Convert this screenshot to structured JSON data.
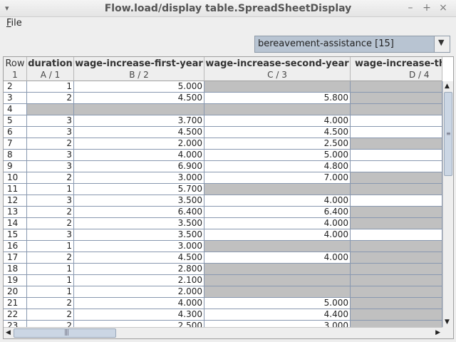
{
  "window": {
    "title": "Flow.load/display table.SpreadSheetDisplay",
    "minimize": "–",
    "maximize": "+",
    "close": "×",
    "menu_icon": "▾"
  },
  "menu": {
    "file_mnemonic": "F",
    "file_rest": "ile"
  },
  "selector": {
    "value": "bereavement-assistance [15]",
    "arrow": "▼"
  },
  "table": {
    "row_header": {
      "name": "Row",
      "index": "1"
    },
    "columns": [
      {
        "name": "duration",
        "sub": "A / 1"
      },
      {
        "name": "wage-increase-first-year",
        "sub": "B / 2"
      },
      {
        "name": "wage-increase-second-year",
        "sub": "C / 3"
      },
      {
        "name": "wage-increase-th",
        "sub": "D / 4"
      }
    ],
    "rows": [
      {
        "row": "2",
        "cells": [
          "1",
          "5.000",
          null,
          null
        ]
      },
      {
        "row": "3",
        "cells": [
          "2",
          "4.500",
          "5.800",
          null
        ]
      },
      {
        "row": "4",
        "cells": [
          null,
          null,
          null,
          null
        ]
      },
      {
        "row": "5",
        "cells": [
          "3",
          "3.700",
          "4.000",
          ""
        ]
      },
      {
        "row": "6",
        "cells": [
          "3",
          "4.500",
          "4.500",
          ""
        ]
      },
      {
        "row": "7",
        "cells": [
          "2",
          "2.000",
          "2.500",
          null
        ]
      },
      {
        "row": "8",
        "cells": [
          "3",
          "4.000",
          "5.000",
          ""
        ]
      },
      {
        "row": "9",
        "cells": [
          "3",
          "6.900",
          "4.800",
          ""
        ]
      },
      {
        "row": "10",
        "cells": [
          "2",
          "3.000",
          "7.000",
          null
        ]
      },
      {
        "row": "11",
        "cells": [
          "1",
          "5.700",
          null,
          null
        ]
      },
      {
        "row": "12",
        "cells": [
          "3",
          "3.500",
          "4.000",
          ""
        ]
      },
      {
        "row": "13",
        "cells": [
          "2",
          "6.400",
          "6.400",
          null
        ]
      },
      {
        "row": "14",
        "cells": [
          "2",
          "3.500",
          "4.000",
          null
        ]
      },
      {
        "row": "15",
        "cells": [
          "3",
          "3.500",
          "4.000",
          ""
        ]
      },
      {
        "row": "16",
        "cells": [
          "1",
          "3.000",
          null,
          null
        ]
      },
      {
        "row": "17",
        "cells": [
          "2",
          "4.500",
          "4.000",
          null
        ]
      },
      {
        "row": "18",
        "cells": [
          "1",
          "2.800",
          null,
          null
        ]
      },
      {
        "row": "19",
        "cells": [
          "1",
          "2.100",
          null,
          null
        ]
      },
      {
        "row": "20",
        "cells": [
          "1",
          "2.000",
          null,
          null
        ]
      },
      {
        "row": "21",
        "cells": [
          "2",
          "4.000",
          "5.000",
          null
        ]
      },
      {
        "row": "22",
        "cells": [
          "2",
          "4.300",
          "4.400",
          null
        ]
      },
      {
        "row": "23",
        "cells": [
          "2",
          "2.500",
          "3.000",
          null
        ]
      }
    ]
  },
  "scrollbars": {
    "up": "▲",
    "down": "▼",
    "left": "◀",
    "right": "▶",
    "vgrip": "≡",
    "hgrip": "|||"
  },
  "colors": {
    "missing": "#c0c0c0",
    "selector_bg": "#b8c4d2",
    "grid": "#8898b0"
  }
}
